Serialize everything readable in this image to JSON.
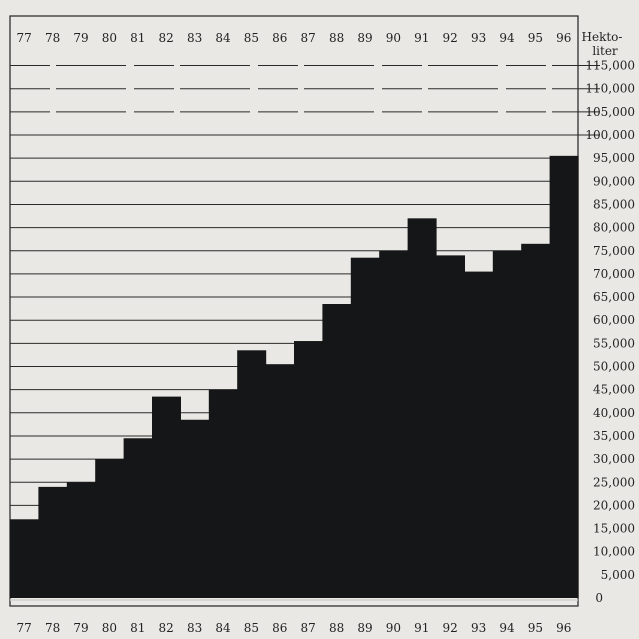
{
  "chart_data": {
    "type": "bar",
    "categories": [
      "77",
      "78",
      "79",
      "80",
      "81",
      "82",
      "83",
      "84",
      "85",
      "86",
      "87",
      "88",
      "89",
      "90",
      "91",
      "92",
      "93",
      "94",
      "95",
      "96"
    ],
    "values": [
      17000,
      24000,
      25000,
      30000,
      34500,
      43500,
      38500,
      45000,
      53500,
      50500,
      55500,
      63500,
      73500,
      75000,
      82000,
      74000,
      70500,
      75000,
      76500,
      95500
    ],
    "ylim": [
      0,
      120000
    ],
    "y_ticks": [
      0,
      5000,
      10000,
      15000,
      20000,
      25000,
      30000,
      35000,
      40000,
      45000,
      50000,
      55000,
      60000,
      65000,
      70000,
      75000,
      80000,
      85000,
      90000,
      95000,
      100000,
      105000,
      110000,
      115000
    ],
    "y_tick_labels": [
      "0",
      "5,000",
      "10,000",
      "15,000",
      "20,000",
      "25,000",
      "30,000",
      "35,000",
      "40,000",
      "45,000",
      "50,000",
      "55,000",
      "60,000",
      "65,000",
      "70,000",
      "75,000",
      "80,000",
      "85,000",
      "90,000",
      "95,000",
      "100,000",
      "105,000",
      "110,000",
      "115,000"
    ],
    "unit_label_line1": "Hekto-",
    "unit_label_line2": "liter",
    "grid": true,
    "bar_color": "#151617",
    "grid_color": "#2a2a2a"
  }
}
